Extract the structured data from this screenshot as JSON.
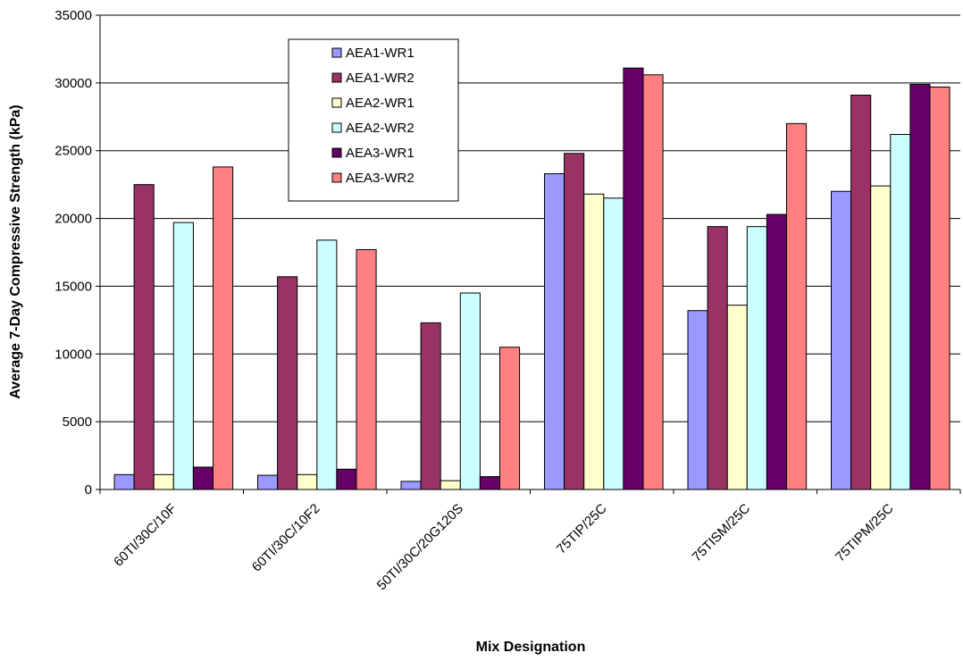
{
  "chart_data": {
    "type": "bar",
    "title": "",
    "xlabel": "Mix Designation",
    "ylabel": "Average 7-Day Compressive Strength (kPa)",
    "ylim": [
      0,
      35000
    ],
    "yticks": [
      0,
      5000,
      10000,
      15000,
      20000,
      25000,
      30000,
      35000
    ],
    "grid": true,
    "legend_position": "top-left-inside",
    "categories": [
      "60TI/30C/10F",
      "60TI/30C/10F2",
      "50TI/30C/20G120S",
      "75TIP/25C",
      "75TISM/25C",
      "75TIPM/25C"
    ],
    "series": [
      {
        "name": "AEA1-WR1",
        "color": "#9999ff",
        "values": [
          1100,
          1050,
          600,
          23300,
          13200,
          22000
        ]
      },
      {
        "name": "AEA1-WR2",
        "color": "#993366",
        "values": [
          22500,
          15700,
          12300,
          24800,
          19400,
          29100
        ]
      },
      {
        "name": "AEA2-WR1",
        "color": "#ffffcc",
        "values": [
          1100,
          1100,
          650,
          21800,
          13600,
          22400
        ]
      },
      {
        "name": "AEA2-WR2",
        "color": "#ccffff",
        "values": [
          19700,
          18400,
          14500,
          21500,
          19400,
          26200
        ]
      },
      {
        "name": "AEA3-WR1",
        "color": "#660066",
        "values": [
          1650,
          1500,
          950,
          31100,
          20300,
          29900
        ]
      },
      {
        "name": "AEA3-WR2",
        "color": "#ff8080",
        "values": [
          23800,
          17700,
          10500,
          30600,
          27000,
          29700
        ]
      }
    ]
  }
}
